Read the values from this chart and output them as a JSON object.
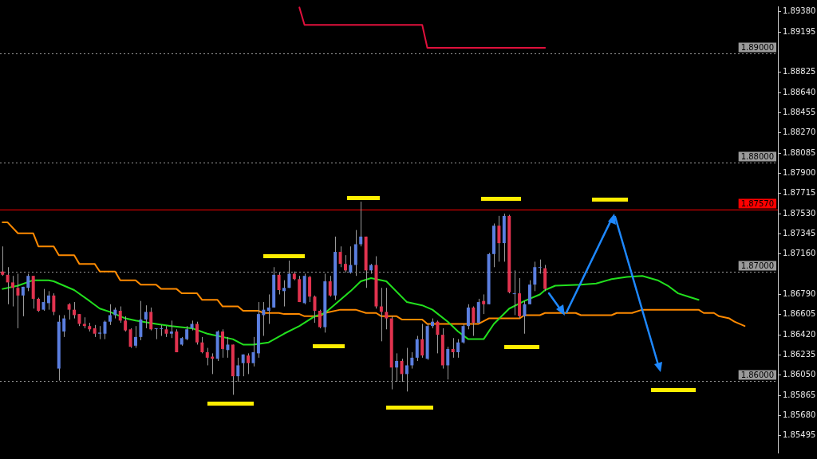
{
  "chart_data": {
    "type": "candlestick",
    "categories": [
      null,
      null,
      null,
      null,
      null,
      null,
      null,
      null,
      null,
      null,
      null,
      null,
      null,
      null,
      null,
      null,
      null,
      null,
      null,
      null,
      null,
      null,
      null,
      null,
      null,
      null,
      null,
      null,
      null,
      null,
      null,
      null,
      null,
      null,
      null,
      null,
      null,
      null,
      null,
      null,
      null,
      null,
      null,
      null,
      null,
      null,
      null,
      null,
      null,
      null,
      null,
      null,
      null,
      null,
      null,
      null,
      null,
      null,
      null,
      null,
      null,
      null,
      null,
      null,
      null,
      null,
      null,
      null,
      null,
      null,
      null,
      null,
      null,
      null,
      null,
      null,
      null,
      null,
      null,
      null,
      null,
      null,
      null,
      null,
      null,
      null,
      null,
      null,
      null,
      null,
      null,
      null,
      null,
      null,
      null,
      null,
      null,
      null,
      null,
      null,
      null,
      null,
      null,
      null,
      null,
      null,
      null,
      null,
      null,
      null,
      null,
      null,
      null,
      null,
      null,
      null,
      null,
      null,
      null,
      null,
      null,
      null,
      null,
      null,
      null,
      null,
      null,
      null,
      null,
      null,
      null,
      null,
      null,
      null,
      null,
      null,
      null,
      null,
      null,
      null,
      null,
      null,
      null,
      null,
      null,
      null,
      null,
      null,
      null,
      null,
      null,
      null
    ],
    "ohlc": [
      [
        1.87,
        1.8723,
        1.8696,
        1.8697
      ],
      [
        1.8697,
        1.8704,
        1.867,
        1.869
      ],
      [
        1.869,
        1.8696,
        1.8668,
        1.8685
      ],
      [
        1.8685,
        1.8698,
        1.8648,
        1.8678
      ],
      [
        1.8678,
        1.8686,
        1.8659,
        1.8686
      ],
      [
        1.8685,
        1.8698,
        1.8682,
        1.8696
      ],
      [
        1.8696,
        1.8696,
        1.8666,
        1.8675
      ],
      [
        1.8675,
        1.8676,
        1.8663,
        1.8664
      ],
      [
        1.8665,
        1.8684,
        1.8664,
        1.8672
      ],
      [
        1.8671,
        1.8682,
        1.8665,
        1.8678
      ],
      [
        1.8678,
        1.868,
        1.866,
        1.8663
      ],
      [
        1.8611,
        1.866,
        1.86,
        1.8654
      ],
      [
        1.8645,
        1.866,
        1.864,
        1.8657
      ],
      [
        1.867,
        1.8671,
        1.8656,
        1.8665
      ],
      [
        1.8665,
        1.8672,
        1.8657,
        1.866
      ],
      [
        1.8661,
        1.8661,
        1.865,
        1.8652
      ],
      [
        1.8652,
        1.8658,
        1.8648,
        1.865
      ],
      [
        1.865,
        1.8653,
        1.8645,
        1.8647
      ],
      [
        1.8648,
        1.8651,
        1.864,
        1.8643
      ],
      [
        1.8643,
        1.865,
        1.8638,
        1.8644
      ],
      [
        1.8643,
        1.8655,
        1.8638,
        1.8654
      ],
      [
        1.8654,
        1.867,
        1.8651,
        1.866
      ],
      [
        1.866,
        1.8667,
        1.8657,
        1.8665
      ],
      [
        1.8664,
        1.8668,
        1.8653,
        1.8655
      ],
      [
        1.8655,
        1.8659,
        1.8645,
        1.8646
      ],
      [
        1.8647,
        1.8648,
        1.863,
        1.8631
      ],
      [
        1.8632,
        1.865,
        1.863,
        1.864
      ],
      [
        1.864,
        1.8673,
        1.8637,
        1.8656
      ],
      [
        1.8656,
        1.8669,
        1.8648,
        1.8663
      ],
      [
        1.8663,
        1.8667,
        1.8646,
        1.8647
      ],
      [
        1.8648,
        1.8648,
        1.8638,
        1.8648
      ],
      [
        1.8648,
        1.8651,
        1.8641,
        1.8648
      ],
      [
        1.8647,
        1.865,
        1.864,
        1.8643
      ],
      [
        1.8643,
        1.8655,
        1.8639,
        1.8645
      ],
      [
        1.8645,
        1.8647,
        1.8626,
        1.8626
      ],
      [
        1.8633,
        1.864,
        1.8632,
        1.8639
      ],
      [
        1.8638,
        1.865,
        1.8637,
        1.8647
      ],
      [
        1.8648,
        1.8655,
        1.8646,
        1.8652
      ],
      [
        1.8652,
        1.8654,
        1.8633,
        1.8635
      ],
      [
        1.8635,
        1.864,
        1.8625,
        1.8626
      ],
      [
        1.8626,
        1.863,
        1.8614,
        1.8621
      ],
      [
        1.8622,
        1.8625,
        1.8606,
        1.862
      ],
      [
        1.862,
        1.8646,
        1.8618,
        1.8645
      ],
      [
        1.8645,
        1.8647,
        1.8621,
        1.8629
      ],
      [
        1.8628,
        1.864,
        1.8621,
        1.8633
      ],
      [
        1.8633,
        1.8633,
        1.8587,
        1.8604
      ],
      [
        1.8604,
        1.8621,
        1.8599,
        1.8614
      ],
      [
        1.8616,
        1.8624,
        1.8604,
        1.8624
      ],
      [
        1.8623,
        1.8625,
        1.8606,
        1.8616
      ],
      [
        1.8616,
        1.864,
        1.8613,
        1.8626
      ],
      [
        1.8625,
        1.8672,
        1.8621,
        1.8661
      ],
      [
        1.866,
        1.8672,
        1.8641,
        1.8665
      ],
      [
        1.8664,
        1.8679,
        1.8652,
        1.8667
      ],
      [
        1.8667,
        1.8704,
        1.8667,
        1.8697
      ],
      [
        1.8697,
        1.8699,
        1.8679,
        1.8683
      ],
      [
        1.8682,
        1.8692,
        1.8668,
        1.8685
      ],
      [
        1.8685,
        1.871,
        1.8685,
        1.8698
      ],
      [
        1.8698,
        1.87,
        1.8692,
        1.8693
      ],
      [
        1.8693,
        1.8696,
        1.8672,
        1.8672
      ],
      [
        1.8671,
        1.8698,
        1.867,
        1.8696
      ],
      [
        1.8695,
        1.8696,
        1.8672,
        1.8677
      ],
      [
        1.8677,
        1.8678,
        1.8653,
        1.8664
      ],
      [
        1.8664,
        1.8665,
        1.8648,
        1.8649
      ],
      [
        1.8649,
        1.8698,
        1.8644,
        1.8691
      ],
      [
        1.8691,
        1.8696,
        1.8677,
        1.8678
      ],
      [
        1.8678,
        1.8732,
        1.8674,
        1.8718
      ],
      [
        1.8718,
        1.8723,
        1.8704,
        1.8707
      ],
      [
        1.8707,
        1.8715,
        1.8699,
        1.8701
      ],
      [
        1.8699,
        1.8723,
        1.8698,
        1.8706
      ],
      [
        1.8706,
        1.8738,
        1.8696,
        1.8725
      ],
      [
        1.8725,
        1.8764,
        1.8723,
        1.8732
      ],
      [
        1.8732,
        1.8732,
        1.8685,
        1.8701
      ],
      [
        1.8701,
        1.8707,
        1.8698,
        1.8706
      ],
      [
        1.8706,
        1.8714,
        1.8666,
        1.8668
      ],
      [
        1.8668,
        1.8685,
        1.8636,
        1.8663
      ],
      [
        1.8663,
        1.8685,
        1.8647,
        1.8657
      ],
      [
        1.8657,
        1.8659,
        1.8592,
        1.8612
      ],
      [
        1.8612,
        1.8625,
        1.8599,
        1.8618
      ],
      [
        1.8618,
        1.862,
        1.8599,
        1.8606
      ],
      [
        1.8606,
        1.863,
        1.859,
        1.8614
      ],
      [
        1.8614,
        1.8626,
        1.8611,
        1.8621
      ],
      [
        1.8621,
        1.8641,
        1.8618,
        1.8638
      ],
      [
        1.8638,
        1.8652,
        1.8621,
        1.8623
      ],
      [
        1.862,
        1.8652,
        1.8619,
        1.865
      ],
      [
        1.865,
        1.8657,
        1.8648,
        1.8654
      ],
      [
        1.8654,
        1.8655,
        1.8625,
        1.8642
      ],
      [
        1.8642,
        1.8648,
        1.8611,
        1.8614
      ],
      [
        1.8614,
        1.8631,
        1.8601,
        1.8629
      ],
      [
        1.8629,
        1.8639,
        1.8621,
        1.8626
      ],
      [
        1.8626,
        1.8638,
        1.8621,
        1.8635
      ],
      [
        1.8635,
        1.8652,
        1.8634,
        1.865
      ],
      [
        1.865,
        1.867,
        1.8647,
        1.8667
      ],
      [
        1.8667,
        1.8668,
        1.8641,
        1.8653
      ],
      [
        1.8653,
        1.8675,
        1.8652,
        1.8672
      ],
      [
        1.8673,
        1.8679,
        1.8661,
        1.867
      ],
      [
        1.867,
        1.8717,
        1.867,
        1.8716
      ],
      [
        1.8716,
        1.8744,
        1.8704,
        1.8742
      ],
      [
        1.8742,
        1.8751,
        1.8709,
        1.8726
      ],
      [
        1.8726,
        1.8753,
        1.8709,
        1.8751
      ],
      [
        1.8751,
        1.8752,
        1.868,
        1.8681
      ],
      [
        1.868,
        1.8701,
        1.866,
        1.868
      ],
      [
        1.868,
        1.8694,
        1.8657,
        1.8659
      ],
      [
        1.8659,
        1.8673,
        1.8643,
        1.867
      ],
      [
        1.867,
        1.8692,
        1.867,
        1.8688
      ],
      [
        1.8688,
        1.8709,
        1.8682,
        1.8704
      ],
      [
        1.8704,
        1.8711,
        1.8698,
        1.8704
      ],
      [
        1.8703,
        1.8706,
        1.8682,
        1.8684
      ],
      null,
      null,
      null,
      null,
      null,
      null,
      null,
      null,
      null,
      null,
      null,
      null,
      null,
      null,
      null,
      null,
      null,
      null,
      null,
      null,
      null,
      null,
      null,
      null,
      null,
      null,
      null,
      null,
      null,
      null,
      null,
      null,
      null,
      null,
      null,
      null,
      null,
      null,
      null,
      null,
      null,
      null,
      null,
      null,
      null
    ],
    "colors": [
      "#e2334f",
      "#e2334f",
      "#e2334f",
      "#e2334f",
      "#5b7fe0",
      "#5b7fe0",
      "#e2334f",
      "#e2334f",
      "#5b7fe0",
      "#5b7fe0",
      "#e2334f",
      "#5b7fe0",
      "#5b7fe0",
      "#e2334f",
      "#e2334f",
      "#e2334f",
      "#e2334f",
      "#e2334f",
      "#e2334f",
      "#5b7fe0",
      "#5b7fe0",
      "#5b7fe0",
      "#5b7fe0",
      "#e2334f",
      "#e2334f",
      "#e2334f",
      "#5b7fe0",
      "#5b7fe0",
      "#5b7fe0",
      "#e2334f",
      "#5b7fe0",
      "#5b7fe0",
      "#e2334f",
      "#5b7fe0",
      "#e2334f",
      "#5b7fe0",
      "#5b7fe0",
      "#5b7fe0",
      "#e2334f",
      "#e2334f",
      "#e2334f",
      "#e2334f",
      "#5b7fe0",
      "#e2334f",
      "#5b7fe0",
      "#e2334f",
      "#5b7fe0",
      "#5b7fe0",
      "#e2334f",
      "#5b7fe0",
      "#5b7fe0",
      "#5b7fe0",
      "#5b7fe0",
      "#5b7fe0",
      "#e2334f",
      "#5b7fe0",
      "#5b7fe0",
      "#e2334f",
      "#e2334f",
      "#5b7fe0",
      "#e2334f",
      "#e2334f",
      "#e2334f",
      "#5b7fe0",
      "#e2334f",
      "#5b7fe0",
      "#e2334f",
      "#e2334f",
      "#5b7fe0",
      "#5b7fe0",
      "#5b7fe0",
      "#e2334f",
      "#5b7fe0",
      "#e2334f",
      "#e2334f",
      "#e2334f",
      "#e2334f",
      "#5b7fe0",
      "#e2334f",
      "#5b7fe0",
      "#5b7fe0",
      "#5b7fe0",
      "#e2334f",
      "#5b7fe0",
      "#5b7fe0",
      "#e2334f",
      "#e2334f",
      "#5b7fe0",
      "#e2334f",
      "#5b7fe0",
      "#5b7fe0",
      "#5b7fe0",
      "#e2334f",
      "#5b7fe0",
      "#e2334f",
      "#5b7fe0",
      "#5b7fe0",
      "#e2334f",
      "#5b7fe0",
      "#e2334f",
      "#5b7fe0",
      "#e2334f",
      "#5b7fe0",
      "#5b7fe0",
      "#5b7fe0",
      "#5b7fe0",
      "#e2334f",
      null,
      null,
      null,
      null,
      null,
      null,
      null,
      null,
      null,
      null,
      null,
      null,
      null,
      null,
      null,
      null,
      null,
      null,
      null,
      null,
      null,
      null,
      null,
      null,
      null,
      null,
      null,
      null,
      null,
      null,
      null,
      null,
      null,
      null,
      null,
      null,
      null,
      null,
      null,
      null,
      null,
      null,
      null,
      null,
      null
    ],
    "series": [
      {
        "type": "line",
        "color": "#22e01e",
        "values": [
          1.8684,
          null,
          null,
          1.8687,
          null,
          null,
          1.8692,
          null,
          null,
          1.8692,
          1.8691,
          null,
          null,
          null,
          1.8683,
          null,
          null,
          1.8673,
          null,
          1.8666,
          null,
          1.8663,
          null,
          null,
          1.8657,
          null,
          1.8655,
          null,
          null,
          null,
          1.8652,
          null,
          null,
          1.865,
          null,
          null,
          null,
          1.8648,
          null,
          null,
          1.8643,
          null,
          null,
          null,
          null,
          1.8638,
          null,
          1.8633,
          null,
          1.8633,
          null,
          null,
          1.8635,
          null,
          null,
          1.8643,
          null,
          null,
          1.865,
          null,
          null,
          1.8659,
          null,
          1.8662,
          null,
          1.867,
          null,
          null,
          1.8682,
          null,
          1.8691,
          null,
          1.8694,
          null,
          null,
          1.8691,
          null,
          null,
          null,
          1.8672,
          null,
          null,
          1.8669,
          null,
          1.8665,
          null,
          null,
          1.8654,
          null,
          1.8645,
          null,
          1.8638,
          null,
          null,
          1.8638,
          null,
          1.8652,
          null,
          null,
          1.8666,
          null,
          null,
          1.8673,
          null,
          null,
          1.8679,
          1.8683,
          null,
          1.8687,
          null,
          null,
          null,
          null,
          1.8688,
          null,
          null,
          1.8689,
          null,
          null,
          1.8693,
          null,
          null,
          1.8695,
          null,
          null,
          1.8696,
          null,
          null,
          1.8692,
          null,
          1.8687,
          null,
          1.868,
          null,
          1.8677,
          null,
          1.8674,
          null,
          null,
          null,
          null,
          null,
          null,
          null,
          null,
          null,
          null,
          null,
          null,
          null,
          null,
          null
        ]
      },
      {
        "type": "line",
        "color": "#ff8a00",
        "values": [
          1.8745,
          1.8745,
          null,
          1.8735,
          null,
          null,
          1.8735,
          1.8723,
          null,
          null,
          1.8723,
          1.8715,
          null,
          null,
          1.8715,
          1.8707,
          null,
          null,
          1.8707,
          1.87,
          null,
          null,
          1.87,
          1.8692,
          null,
          null,
          1.8692,
          1.8688,
          null,
          null,
          1.8688,
          1.8684,
          null,
          null,
          1.8684,
          1.868,
          null,
          null,
          1.868,
          1.8674,
          null,
          null,
          1.8674,
          1.8668,
          null,
          null,
          1.8668,
          1.8664,
          null,
          null,
          1.8664,
          1.8662,
          null,
          null,
          1.8662,
          1.8661,
          null,
          null,
          1.8661,
          1.8659,
          null,
          null,
          1.8659,
          1.8662,
          null,
          null,
          1.8665,
          null,
          null,
          1.8665,
          null,
          1.8662,
          null,
          1.8662,
          1.8659,
          null,
          null,
          1.8659,
          1.8656,
          null,
          null,
          null,
          1.8656,
          1.8652,
          null,
          null,
          null,
          null,
          null,
          null,
          null,
          null,
          null,
          1.8652,
          null,
          1.8657,
          null,
          null,
          null,
          null,
          null,
          1.8657,
          1.866,
          null,
          null,
          1.866,
          1.8662,
          null,
          null,
          null,
          null,
          null,
          1.8662,
          1.866,
          null,
          null,
          null,
          null,
          null,
          1.866,
          1.8662,
          null,
          null,
          1.8662,
          null,
          1.8665,
          null,
          null,
          null,
          null,
          null,
          null,
          null,
          null,
          null,
          null,
          1.8665,
          1.8662,
          null,
          1.8662,
          1.8659,
          null,
          1.8657,
          1.8654,
          null,
          1.865,
          null,
          null,
          null,
          null,
          null,
          null
        ]
      },
      {
        "type": "line",
        "color": "#e0103c",
        "values": [
          null,
          null,
          null,
          null,
          null,
          null,
          null,
          null,
          null,
          null,
          null,
          null,
          null,
          null,
          null,
          null,
          null,
          null,
          null,
          null,
          null,
          null,
          null,
          null,
          null,
          null,
          null,
          null,
          null,
          null,
          null,
          null,
          null,
          null,
          null,
          null,
          null,
          null,
          null,
          null,
          null,
          null,
          null,
          null,
          null,
          null,
          null,
          null,
          null,
          null,
          null,
          null,
          null,
          null,
          null,
          null,
          null,
          null,
          1.8942,
          1.8926,
          null,
          null,
          null,
          null,
          null,
          null,
          null,
          null,
          null,
          null,
          null,
          null,
          null,
          null,
          null,
          null,
          null,
          null,
          null,
          null,
          null,
          null,
          1.8926,
          1.8905,
          null,
          null,
          null,
          null,
          null,
          null,
          null,
          null,
          null,
          null,
          null,
          null,
          null,
          null,
          null,
          null,
          null,
          null,
          null,
          null,
          null,
          null,
          1.8905,
          null,
          null,
          null,
          null,
          null,
          null,
          null,
          null,
          null,
          null,
          null,
          null,
          null,
          null,
          null,
          null,
          null,
          null,
          null,
          null,
          null,
          null,
          null,
          null,
          null,
          null,
          null,
          null,
          null,
          null,
          null,
          null,
          null,
          null,
          null,
          null,
          null,
          null,
          null,
          null,
          null,
          null,
          null,
          null,
          null
        ]
      }
    ],
    "ylim": [
      1.8534,
      1.8943
    ],
    "yticks": [
      {
        "value": 1.8938,
        "label": "1.89380"
      },
      1.89195,
      1.88825,
      {
        "value": 1.8864,
        "label": "1.88640"
      },
      1.88455,
      {
        "value": 1.8827,
        "label": "1.88270"
      },
      1.88085,
      {
        "value": 1.879,
        "label": "1.87900"
      },
      1.87715,
      {
        "value": 1.8753,
        "label": "1.87530"
      },
      1.87345,
      {
        "value": 1.8716,
        "label": "1.87160"
      },
      {
        "value": 1.8679,
        "label": "1.86790"
      },
      1.86605,
      {
        "value": 1.8642,
        "label": "1.86420"
      },
      1.86235,
      {
        "value": 1.8605,
        "label": "1.86050"
      },
      1.85865,
      {
        "value": 1.8568,
        "label": "1.85680"
      },
      1.85495
    ],
    "ref_lines": [
      {
        "axis": "y",
        "value": 1.89,
        "label": "1.89000",
        "color": "#9a9a9a",
        "line_style": "dotted"
      },
      {
        "axis": "y",
        "value": 1.88,
        "label": "1.88000",
        "color": "#9a9a9a",
        "line_style": "dotted"
      },
      {
        "axis": "y",
        "value": 1.8757,
        "label": "1.87570",
        "color": "#ff0000",
        "line_style": "solid"
      },
      {
        "axis": "y",
        "value": 1.87,
        "label": "1.87000",
        "color": "#9a9a9a",
        "line_style": "dotted"
      },
      {
        "axis": "y",
        "value": 1.86,
        "label": "1.86000",
        "color": "#9a9a9a",
        "line_style": "dotted"
      }
    ],
    "marker": "none",
    "tick_labels": "y"
  }
}
